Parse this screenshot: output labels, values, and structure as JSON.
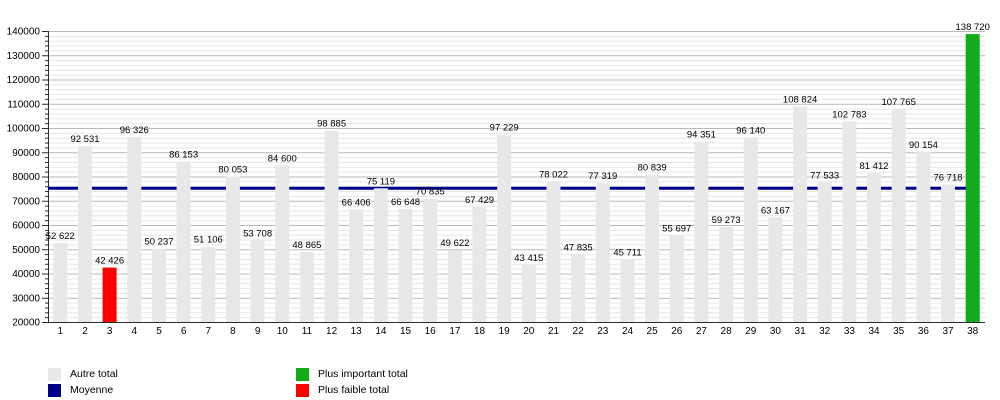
{
  "chart_data": {
    "type": "bar",
    "title": "",
    "xlabel": "",
    "ylabel": "",
    "categories": [
      "1",
      "2",
      "3",
      "4",
      "5",
      "6",
      "7",
      "8",
      "9",
      "10",
      "11",
      "12",
      "13",
      "14",
      "15",
      "16",
      "17",
      "18",
      "19",
      "20",
      "21",
      "22",
      "23",
      "24",
      "25",
      "26",
      "27",
      "28",
      "29",
      "30",
      "31",
      "32",
      "33",
      "34",
      "35",
      "36",
      "37",
      "38"
    ],
    "values": [
      52622,
      92531,
      42426,
      96326,
      50237,
      86153,
      51106,
      80053,
      53708,
      84600,
      48865,
      98885,
      66406,
      75119,
      66648,
      70835,
      49622,
      67429,
      97229,
      43415,
      78022,
      47835,
      77319,
      45711,
      80839,
      55697,
      94351,
      59273,
      96140,
      63167,
      108824,
      77533,
      102783,
      81412,
      107765,
      90154,
      76718,
      138720
    ],
    "data_labels": [
      "52 622",
      "92 531",
      "42 426",
      "96 326",
      "50 237",
      "86 153",
      "51 106",
      "80 053",
      "53 708",
      "84 600",
      "48 865",
      "98 885",
      "66 406",
      "75 119",
      "66 648",
      "70 835",
      "49 622",
      "67 429",
      "97 229",
      "43 415",
      "78 022",
      "47 835",
      "77 319",
      "45 711",
      "80 839",
      "55 697",
      "94 351",
      "59 273",
      "96 140",
      "63 167",
      "108 824",
      "77 533",
      "102 783",
      "81 412",
      "107 765",
      "90 154",
      "76 718",
      "138 720"
    ],
    "ylim": [
      20000,
      140000
    ],
    "y_major_step": 10000,
    "y_minor_step": 2000,
    "grid": true,
    "min_index": 2,
    "max_index": 37,
    "average_line": {
      "label": "Moyenne",
      "value": 75170,
      "color": "#00008b"
    },
    "colors": {
      "default": "#e8e8e8",
      "min": "#ff0000",
      "max": "#12ab1a",
      "average": "#00008b",
      "major_grid": "#b9b9b9",
      "minor_grid": "#e6e6e6",
      "axis": "#2b2b2b"
    },
    "legend": {
      "position": "bottom",
      "entries": [
        {
          "label": "Autre total",
          "color": "#e8e8e8"
        },
        {
          "label": "Moyenne",
          "color": "#00008b"
        },
        {
          "label": "Plus important total",
          "color": "#12ab1a"
        },
        {
          "label": "Plus faible total",
          "color": "#ff0000"
        }
      ]
    }
  }
}
